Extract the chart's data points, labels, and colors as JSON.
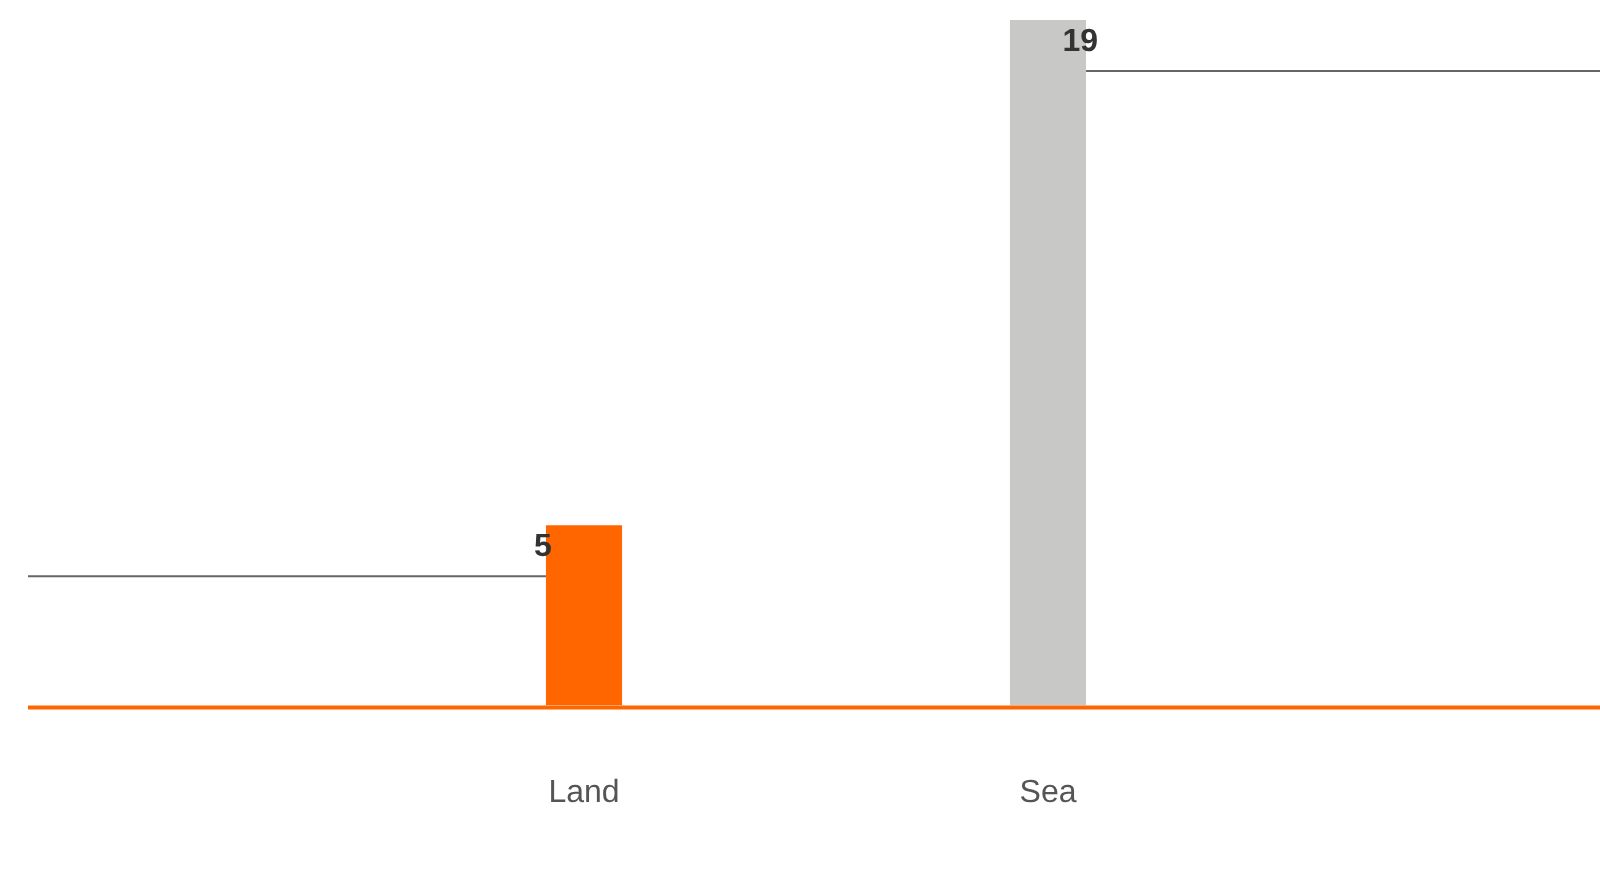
{
  "chart_data": {
    "type": "bar",
    "categories": [
      "Land",
      "Sea"
    ],
    "values": [
      5,
      19
    ],
    "colors": [
      "#ff6600",
      "#c8c8c6"
    ],
    "data_labels": true,
    "grid": false,
    "legend": false
  }
}
